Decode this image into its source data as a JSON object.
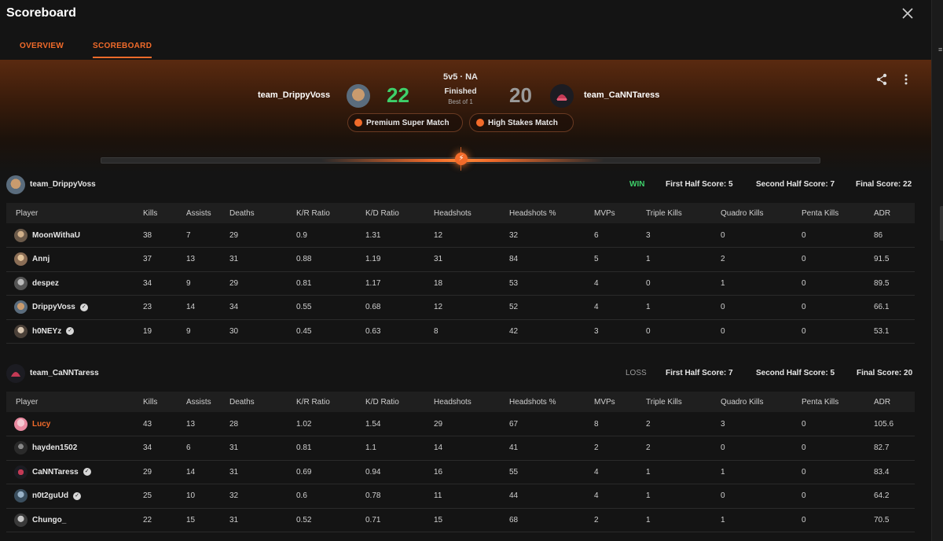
{
  "window": {
    "title": "Scoreboard"
  },
  "tabs": [
    {
      "label": "OVERVIEW"
    },
    {
      "label": "SCOREBOARD"
    }
  ],
  "match": {
    "mode": "5v5 · NA",
    "status": "Finished",
    "format": "Best of 1",
    "team_left": {
      "name": "team_DrippyVoss",
      "score": "22"
    },
    "team_right": {
      "name": "team_CaNNTaress",
      "score": "20"
    },
    "tags": [
      {
        "label": "Premium Super Match"
      },
      {
        "label": "High Stakes Match"
      }
    ]
  },
  "colors": {
    "accent": "#f26b2a",
    "win": "#3ed06a",
    "loss": "#9a9a9a",
    "background": "#141414"
  },
  "icons": {
    "close": "close-icon",
    "share": "share-icon",
    "more": "more-vertical-icon",
    "verified": "verified-check-icon",
    "lightning": "lightning-icon"
  },
  "columns": [
    "Player",
    "Kills",
    "Assists",
    "Deaths",
    "K/R Ratio",
    "K/D Ratio",
    "Headshots",
    "Headshots %",
    "MVPs",
    "Triple Kills",
    "Quadro Kills",
    "Penta Kills",
    "ADR"
  ],
  "teams": [
    {
      "name": "team_DrippyVoss",
      "result": "WIN",
      "first_half": "First Half Score: 5",
      "second_half": "Second Half Score: 7",
      "final": "Final Score: 22",
      "players": [
        {
          "name": "MoonWithaU",
          "verified": false,
          "highlight": false,
          "stats": [
            "38",
            "7",
            "29",
            "0.9",
            "1.31",
            "12",
            "32",
            "6",
            "3",
            "0",
            "0",
            "86"
          ]
        },
        {
          "name": "Annj",
          "verified": false,
          "highlight": false,
          "stats": [
            "37",
            "13",
            "31",
            "0.88",
            "1.19",
            "31",
            "84",
            "5",
            "1",
            "2",
            "0",
            "91.5"
          ]
        },
        {
          "name": "despez",
          "verified": false,
          "highlight": false,
          "stats": [
            "34",
            "9",
            "29",
            "0.81",
            "1.17",
            "18",
            "53",
            "4",
            "0",
            "1",
            "0",
            "89.5"
          ]
        },
        {
          "name": "DrippyVoss",
          "verified": true,
          "highlight": false,
          "stats": [
            "23",
            "14",
            "34",
            "0.55",
            "0.68",
            "12",
            "52",
            "4",
            "1",
            "0",
            "0",
            "66.1"
          ]
        },
        {
          "name": "h0NEYz",
          "verified": true,
          "highlight": false,
          "stats": [
            "19",
            "9",
            "30",
            "0.45",
            "0.63",
            "8",
            "42",
            "3",
            "0",
            "0",
            "0",
            "53.1"
          ]
        }
      ]
    },
    {
      "name": "team_CaNNTaress",
      "result": "LOSS",
      "first_half": "First Half Score: 7",
      "second_half": "Second Half Score: 5",
      "final": "Final Score: 20",
      "players": [
        {
          "name": "Lucy",
          "verified": false,
          "highlight": true,
          "stats": [
            "43",
            "13",
            "28",
            "1.02",
            "1.54",
            "29",
            "67",
            "8",
            "2",
            "3",
            "0",
            "105.6"
          ]
        },
        {
          "name": "hayden1502",
          "verified": false,
          "highlight": false,
          "stats": [
            "34",
            "6",
            "31",
            "0.81",
            "1.1",
            "14",
            "41",
            "2",
            "2",
            "0",
            "0",
            "82.7"
          ]
        },
        {
          "name": "CaNNTaress",
          "verified": true,
          "highlight": false,
          "stats": [
            "29",
            "14",
            "31",
            "0.69",
            "0.94",
            "16",
            "55",
            "4",
            "1",
            "1",
            "0",
            "83.4"
          ]
        },
        {
          "name": "n0t2guUd",
          "verified": true,
          "highlight": false,
          "stats": [
            "25",
            "10",
            "32",
            "0.6",
            "0.78",
            "11",
            "44",
            "4",
            "1",
            "0",
            "0",
            "64.2"
          ]
        },
        {
          "name": "Chungo_",
          "verified": false,
          "highlight": false,
          "stats": [
            "22",
            "15",
            "31",
            "0.52",
            "0.71",
            "15",
            "68",
            "2",
            "1",
            "1",
            "0",
            "70.5"
          ]
        }
      ]
    }
  ]
}
